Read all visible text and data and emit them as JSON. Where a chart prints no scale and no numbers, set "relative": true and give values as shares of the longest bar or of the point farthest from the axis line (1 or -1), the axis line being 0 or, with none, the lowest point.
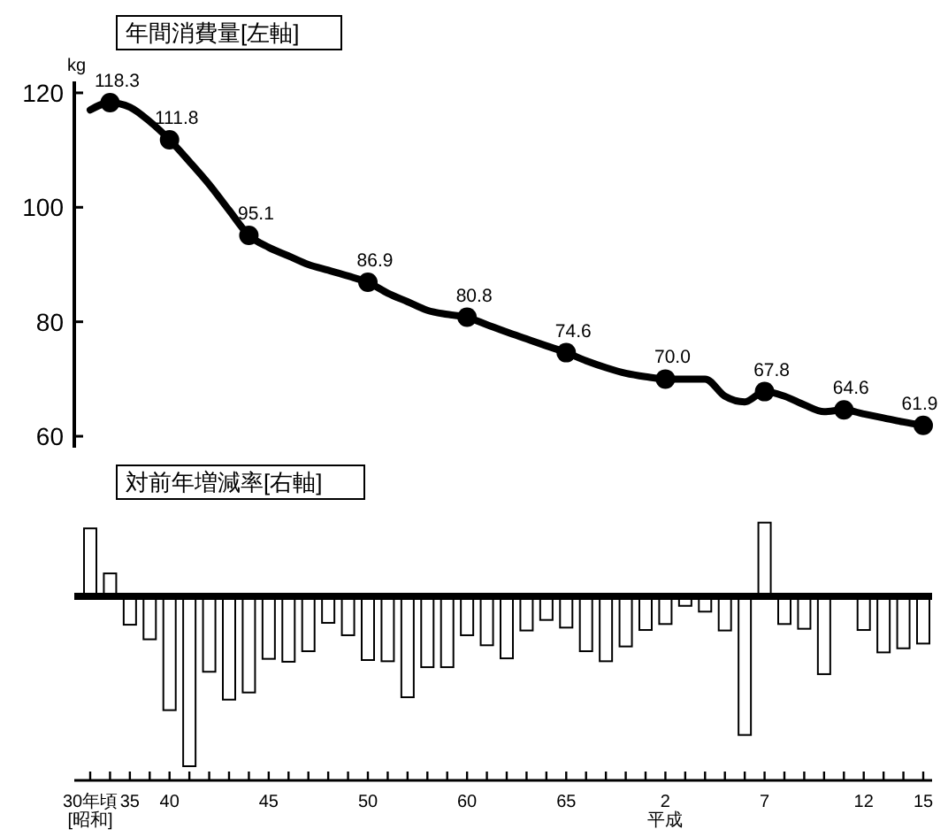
{
  "chart_data": [
    {
      "type": "line",
      "title": "年間消費量[左軸]",
      "ylabel": "kg",
      "series": [
        {
          "type": "line",
          "marker": "none",
          "color": "#000000",
          "values": [
            117,
            118.3,
            117.5,
            115,
            111.8,
            108,
            104,
            99.5,
            95.1,
            93,
            91.5,
            90,
            89,
            88,
            86.9,
            85,
            83.5,
            82,
            81.3,
            80.8,
            79.5,
            78.2,
            77,
            75.8,
            74.6,
            73.2,
            72,
            71,
            70.4,
            70.0,
            70.0,
            70.0,
            67,
            66,
            67.8,
            67,
            65.5,
            64.3,
            64.6,
            63.9,
            63.2,
            62.5,
            61.9
          ]
        },
        {
          "type": "scatter",
          "marker": "circle",
          "color": "#000000",
          "values": [
            null,
            118.3,
            null,
            null,
            111.8,
            null,
            null,
            null,
            95.1,
            null,
            null,
            null,
            null,
            null,
            86.9,
            null,
            null,
            null,
            null,
            80.8,
            null,
            null,
            null,
            null,
            74.6,
            null,
            null,
            null,
            null,
            70.0,
            null,
            null,
            null,
            null,
            67.8,
            null,
            null,
            null,
            64.6,
            null,
            null,
            null,
            61.9
          ],
          "value_labels": [
            null,
            "118.3",
            null,
            null,
            "111.8",
            null,
            null,
            null,
            "95.1",
            null,
            null,
            null,
            null,
            null,
            "86.9",
            null,
            null,
            null,
            null,
            "80.8",
            null,
            null,
            null,
            null,
            "74.6",
            null,
            null,
            null,
            null,
            "70.0",
            null,
            null,
            null,
            null,
            "67.8",
            null,
            null,
            null,
            "64.6",
            null,
            null,
            null,
            "61.9"
          ]
        }
      ],
      "ylim": [
        58,
        122
      ],
      "yticks": [
        60,
        80,
        100,
        120
      ],
      "tick_labels": "y"
    },
    {
      "type": "bar",
      "title": "対前年増減率[右軸]",
      "relative": true,
      "color": "#ffffff",
      "categories": [
        "30年頃\n[昭和]",
        null,
        "35",
        null,
        "40",
        null,
        null,
        null,
        null,
        "45",
        null,
        null,
        null,
        null,
        "50",
        null,
        null,
        null,
        null,
        "60",
        null,
        null,
        null,
        null,
        "65",
        null,
        null,
        null,
        null,
        "2\n平成",
        null,
        null,
        null,
        null,
        "7",
        null,
        null,
        null,
        null,
        "12",
        null,
        null,
        "15"
      ],
      "values": [
        0.4,
        0.135,
        -0.167,
        -0.253,
        -0.67,
        -1,
        -0.444,
        -0.608,
        -0.566,
        -0.368,
        -0.385,
        -0.323,
        -0.156,
        -0.229,
        -0.375,
        -0.382,
        -0.594,
        -0.417,
        -0.417,
        -0.229,
        -0.288,
        -0.365,
        -0.201,
        -0.139,
        -0.184,
        -0.323,
        -0.382,
        -0.295,
        -0.198,
        -0.163,
        -0.056,
        -0.09,
        -0.201,
        -0.816,
        0.434,
        -0.163,
        -0.191,
        -0.458,
        0,
        -0.198,
        -0.33,
        -0.306,
        -0.278
      ],
      "tick_labels": "x"
    }
  ]
}
